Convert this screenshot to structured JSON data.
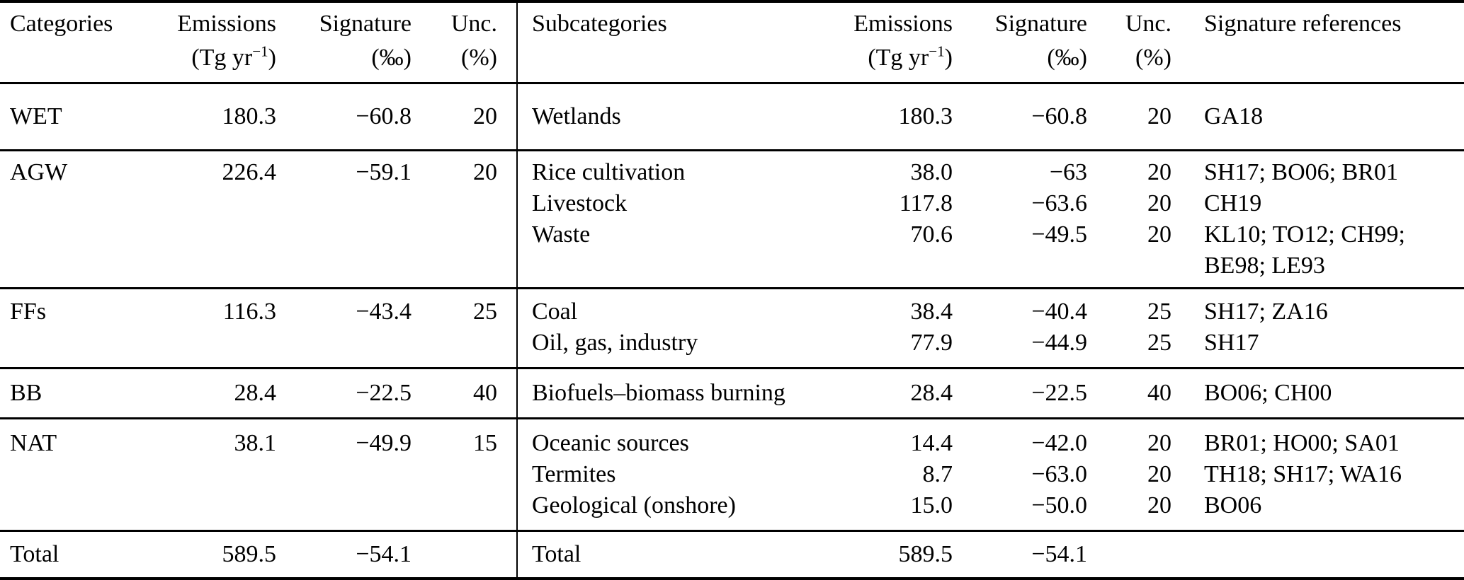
{
  "header": {
    "left": [
      {
        "label": "Categories",
        "unit": ""
      },
      {
        "label": "Emissions",
        "unit": "(Tg yr",
        "unit_sup": "−1",
        "unit_close": ")"
      },
      {
        "label": "Signature",
        "unit": "(‰)"
      },
      {
        "label": "Unc.",
        "unit": "(%)"
      }
    ],
    "right": [
      {
        "label": "Subcategories",
        "unit": ""
      },
      {
        "label": "Emissions",
        "unit": "(Tg yr",
        "unit_sup": "−1",
        "unit_close": ")"
      },
      {
        "label": "Signature",
        "unit": "(‰)"
      },
      {
        "label": "Unc.",
        "unit": "(%)"
      },
      {
        "label": "Signature references",
        "unit": ""
      }
    ]
  },
  "groups": [
    {
      "category": "WET",
      "emissions": "180.3",
      "signature": "−60.8",
      "unc": "20",
      "subrows": [
        {
          "name": "Wetlands",
          "emissions": "180.3",
          "signature": "−60.8",
          "unc": "20",
          "refs": "GA18"
        }
      ]
    },
    {
      "category": "AGW",
      "emissions": "226.4",
      "signature": "−59.1",
      "unc": "20",
      "subrows": [
        {
          "name": "Rice cultivation",
          "emissions": "38.0",
          "signature": "−63",
          "unc": "20",
          "refs": "SH17; BO06; BR01"
        },
        {
          "name": "Livestock",
          "emissions": "117.8",
          "signature": "−63.6",
          "unc": "20",
          "refs": "CH19"
        },
        {
          "name": "Waste",
          "emissions": "70.6",
          "signature": "−49.5",
          "unc": "20",
          "refs": "KL10; TO12; CH99; BE98; LE93"
        }
      ]
    },
    {
      "category": "FFs",
      "emissions": "116.3",
      "signature": "−43.4",
      "unc": "25",
      "subrows": [
        {
          "name": "Coal",
          "emissions": "38.4",
          "signature": "−40.4",
          "unc": "25",
          "refs": "SH17; ZA16"
        },
        {
          "name": "Oil, gas, industry",
          "emissions": "77.9",
          "signature": "−44.9",
          "unc": "25",
          "refs": "SH17"
        }
      ]
    },
    {
      "category": "BB",
      "emissions": "28.4",
      "signature": "−22.5",
      "unc": "40",
      "subrows": [
        {
          "name": "Biofuels–biomass burning",
          "emissions": "28.4",
          "signature": "−22.5",
          "unc": "40",
          "refs": "BO06; CH00"
        }
      ]
    },
    {
      "category": "NAT",
      "emissions": "38.1",
      "signature": "−49.9",
      "unc": "15",
      "subrows": [
        {
          "name": "Oceanic sources",
          "emissions": "14.4",
          "signature": "−42.0",
          "unc": "20",
          "refs": "BR01; HO00; SA01"
        },
        {
          "name": "Termites",
          "emissions": "8.7",
          "signature": "−63.0",
          "unc": "20",
          "refs": "TH18; SH17; WA16"
        },
        {
          "name": "Geological (onshore)",
          "emissions": "15.0",
          "signature": "−50.0",
          "unc": "20",
          "refs": "BO06"
        }
      ]
    },
    {
      "category": "Total",
      "emissions": "589.5",
      "signature": "−54.1",
      "unc": "",
      "subrows": [
        {
          "name": "Total",
          "emissions": "589.5",
          "signature": "−54.1",
          "unc": "",
          "refs": ""
        }
      ]
    }
  ]
}
